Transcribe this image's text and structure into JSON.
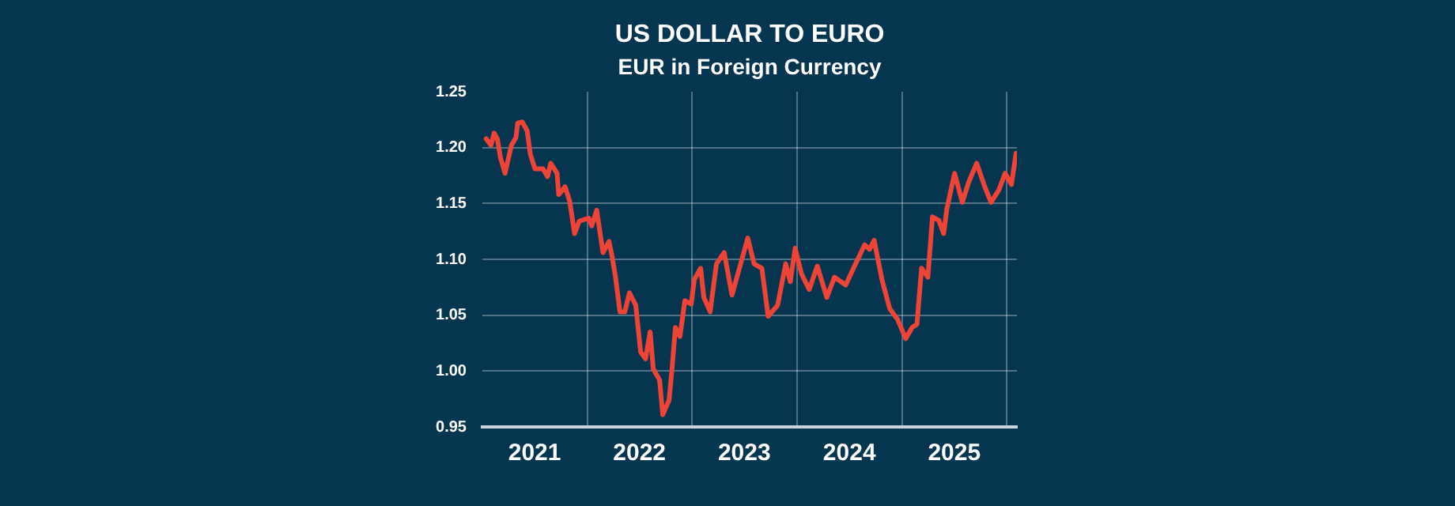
{
  "chart_data": {
    "type": "line",
    "title": "US DOLLAR TO EURO",
    "subtitle": "EUR in Foreign Currency",
    "xlim": [
      "2021-01-01",
      "2026-02-05"
    ],
    "xticks": [
      {
        "value": "2021-07-02",
        "label": "2021"
      },
      {
        "value": "2022-01-01",
        "label": null
      },
      {
        "value": "2022-07-02",
        "label": "2022"
      },
      {
        "value": "2023-01-01",
        "label": null
      },
      {
        "value": "2023-07-02",
        "label": "2023"
      },
      {
        "value": "2024-01-01",
        "label": null
      },
      {
        "value": "2024-07-02",
        "label": "2024"
      },
      {
        "value": "2025-01-01",
        "label": null
      },
      {
        "value": "2025-07-02",
        "label": "2025"
      },
      {
        "value": "2026-01-01",
        "label": null
      }
    ],
    "ylim": [
      0.95,
      1.25
    ],
    "yticks": [
      0.95,
      {
        "value": 1.0,
        "label": "1.00"
      },
      1.05,
      {
        "value": 1.1,
        "label": "1.10"
      },
      1.15,
      {
        "value": 1.2,
        "label": "1.20"
      },
      1.25
    ],
    "grid": true,
    "legend": false,
    "marker": "none",
    "line_style": "solid",
    "x": [
      "2021-01-14",
      "2021-01-31",
      "2021-02-11",
      "2021-02-22",
      "2021-03-05",
      "2021-03-21",
      "2021-04-12",
      "2021-04-28",
      "2021-05-04",
      "2021-05-20",
      "2021-06-06",
      "2021-06-17",
      "2021-07-03",
      "2021-07-31",
      "2021-08-16",
      "2021-08-27",
      "2021-09-18",
      "2021-09-24",
      "2021-10-16",
      "2021-11-01",
      "2021-11-18",
      "2021-12-04",
      "2022-01-06",
      "2022-01-17",
      "2022-02-03",
      "2022-02-25",
      "2022-03-18",
      "2022-03-29",
      "2022-04-09",
      "2022-04-25",
      "2022-05-12",
      "2022-05-28",
      "2022-06-19",
      "2022-07-06",
      "2022-07-23",
      "2022-08-08",
      "2022-08-19",
      "2022-09-10",
      "2022-09-21",
      "2022-10-13",
      "2022-10-24",
      "2022-11-04",
      "2022-11-20",
      "2022-12-07",
      "2022-12-29",
      "2023-01-09",
      "2023-01-31",
      "2023-02-11",
      "2023-03-05",
      "2023-03-27",
      "2023-04-23",
      "2023-05-20",
      "2023-06-17",
      "2023-07-14",
      "2023-08-05",
      "2023-09-01",
      "2023-09-23",
      "2023-10-26",
      "2023-11-23",
      "2023-12-09",
      "2023-12-26",
      "2024-01-17",
      "2024-02-13",
      "2024-03-12",
      "2024-04-14",
      "2024-05-11",
      "2024-06-19",
      "2024-07-16",
      "2024-08-24",
      "2024-09-10",
      "2024-09-26",
      "2024-10-23",
      "2024-11-19",
      "2024-12-17",
      "2025-01-14",
      "2025-02-05",
      "2025-02-22",
      "2025-03-10",
      "2025-04-01",
      "2025-04-17",
      "2025-05-09",
      "2025-05-26",
      "2025-06-06",
      "2025-07-03",
      "2025-07-30",
      "2025-08-21",
      "2025-09-18",
      "2025-10-16",
      "2025-11-07",
      "2025-12-04",
      "2025-12-26",
      "2026-01-17",
      "2026-02-02"
    ],
    "series": [
      {
        "color": "#ee4437",
        "values": [
          1.208,
          1.202,
          1.213,
          1.208,
          1.191,
          1.177,
          1.202,
          1.209,
          1.222,
          1.223,
          1.215,
          1.194,
          1.181,
          1.181,
          1.174,
          1.186,
          1.177,
          1.158,
          1.165,
          1.152,
          1.123,
          1.134,
          1.137,
          1.13,
          1.144,
          1.106,
          1.116,
          1.102,
          1.085,
          1.053,
          1.053,
          1.07,
          1.059,
          1.017,
          1.011,
          1.035,
          1.002,
          0.992,
          0.961,
          0.974,
          1.004,
          1.039,
          1.031,
          1.063,
          1.06,
          1.082,
          1.092,
          1.066,
          1.053,
          1.096,
          1.106,
          1.068,
          1.094,
          1.119,
          1.096,
          1.092,
          1.049,
          1.059,
          1.096,
          1.08,
          1.11,
          1.087,
          1.073,
          1.094,
          1.066,
          1.084,
          1.077,
          1.092,
          1.113,
          1.109,
          1.117,
          1.082,
          1.056,
          1.046,
          1.029,
          1.039,
          1.042,
          1.092,
          1.084,
          1.138,
          1.135,
          1.123,
          1.145,
          1.177,
          1.151,
          1.169,
          1.186,
          1.165,
          1.151,
          1.162,
          1.177,
          1.167,
          1.195
        ]
      }
    ]
  }
}
